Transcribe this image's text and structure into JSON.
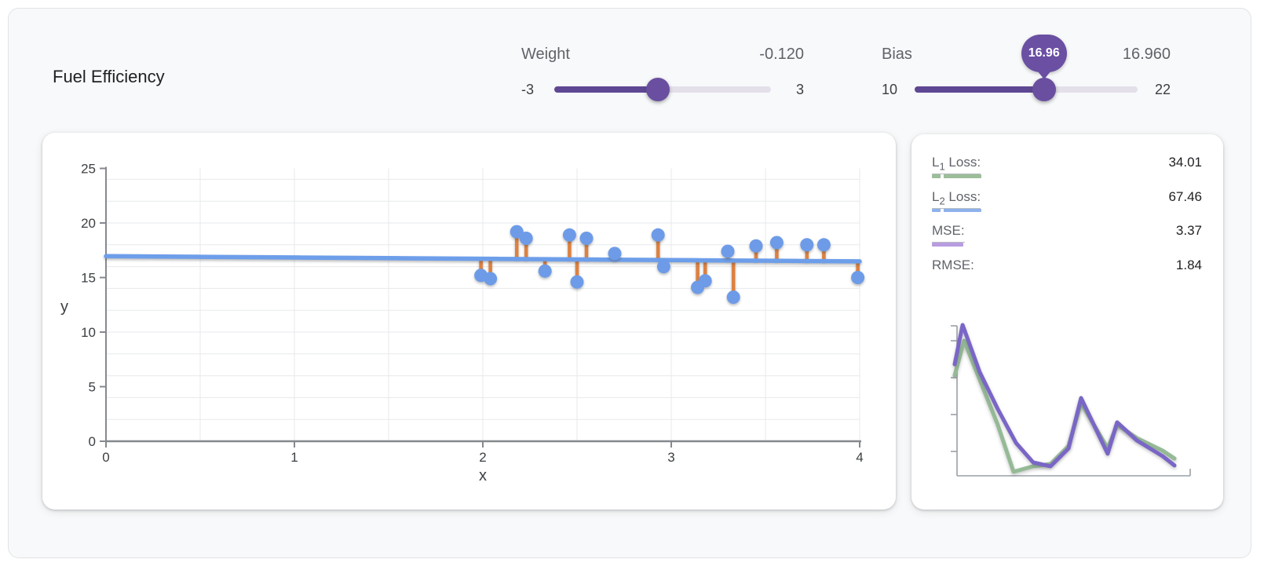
{
  "title": "Fuel Efficiency",
  "sliders": {
    "weight": {
      "label": "Weight",
      "display_value": "-0.120",
      "min_label": "-3",
      "max_label": "3",
      "min": -3,
      "max": 3,
      "value": -0.12
    },
    "bias": {
      "label": "Bias",
      "display_value": "16.960",
      "min_label": "10",
      "max_label": "22",
      "min": 10,
      "max": 22,
      "value": 16.96,
      "tooltip": "16.96"
    }
  },
  "metrics": {
    "rows": [
      {
        "label_pre": "L",
        "label_sub": "1",
        "label_post": " Loss:",
        "value": "34.01",
        "swatch": "green-dashed"
      },
      {
        "label_pre": "L",
        "label_sub": "2",
        "label_post": " Loss:",
        "value": "67.46",
        "swatch": "blue-dashed"
      },
      {
        "label_pre": "MSE:",
        "label_sub": "",
        "label_post": "",
        "value": "3.37",
        "swatch": "purple-solid"
      },
      {
        "label_pre": "RMSE:",
        "label_sub": "",
        "label_post": "",
        "value": "1.84",
        "swatch": "none"
      }
    ]
  },
  "colors": {
    "panel_bg": "#F8F9FA",
    "card_bg": "#FFFFFF",
    "text_dark": "#202124",
    "text_gray": "#5F6368",
    "axis_gray": "#85898E",
    "grid_gray": "#E7E9EC",
    "slider_purple": "#5F4893",
    "slider_thumb_purple": "#6A4FA0",
    "slider_track_empty": "#E4E0EA",
    "bubble_purple": "#6A4FA3",
    "point_blue": "#6D9BE8",
    "line_blue": "#6D9EEA",
    "residual_orange": "#DD8140",
    "loss_green": "#95BA96",
    "loss_purple": "#7A66C6",
    "underline_green": "#9CBE9A",
    "underline_blue": "#8EB1EB",
    "underline_purple": "#B79CE0"
  },
  "chart_data": [
    {
      "id": "fuel-efficiency-scatter",
      "type": "scatter",
      "xlabel": "x",
      "ylabel": "y",
      "xlim": [
        0,
        4
      ],
      "ylim": [
        0,
        25
      ],
      "x_ticks": [
        0,
        1,
        2,
        3,
        4
      ],
      "y_ticks": [
        0,
        5,
        10,
        15,
        20,
        25
      ],
      "x_grid_step": 0.5,
      "y_grid_step": 2,
      "grid": true,
      "points": [
        [
          1.99,
          15.2
        ],
        [
          2.04,
          14.9
        ],
        [
          2.18,
          19.2
        ],
        [
          2.23,
          18.6
        ],
        [
          2.33,
          15.6
        ],
        [
          2.46,
          18.9
        ],
        [
          2.5,
          14.6
        ],
        [
          2.55,
          18.6
        ],
        [
          2.7,
          17.2
        ],
        [
          2.93,
          18.9
        ],
        [
          2.96,
          16.0
        ],
        [
          3.14,
          14.1
        ],
        [
          3.18,
          14.7
        ],
        [
          3.3,
          17.4
        ],
        [
          3.33,
          13.2
        ],
        [
          3.45,
          17.9
        ],
        [
          3.56,
          18.2
        ],
        [
          3.72,
          18.0
        ],
        [
          3.81,
          18.0
        ],
        [
          3.99,
          15.0
        ]
      ],
      "model_line": {
        "weight": -0.12,
        "bias": 16.96
      },
      "show_residuals": true
    },
    {
      "id": "loss-curves",
      "type": "line",
      "x_axis_labels": "none",
      "y_axis_labels": "none",
      "series": [
        {
          "name": "L1 loss",
          "color_key": "loss_green",
          "points_norm": [
            [
              0,
              0.656
            ],
            [
              0.043,
              0.882
            ],
            [
              0.196,
              0.333
            ],
            [
              0.268,
              0.026
            ],
            [
              0.357,
              0.062
            ],
            [
              0.436,
              0.077
            ],
            [
              0.518,
              0.195
            ],
            [
              0.575,
              0.477
            ],
            [
              0.696,
              0.179
            ],
            [
              0.739,
              0.333
            ],
            [
              0.829,
              0.246
            ],
            [
              0.946,
              0.164
            ],
            [
              1,
              0.113
            ]
          ]
        },
        {
          "name": "MSE",
          "color_key": "loss_purple",
          "points_norm": [
            [
              0,
              0.728
            ],
            [
              0.036,
              0.985
            ],
            [
              0.114,
              0.677
            ],
            [
              0.196,
              0.436
            ],
            [
              0.279,
              0.215
            ],
            [
              0.357,
              0.087
            ],
            [
              0.436,
              0.062
            ],
            [
              0.518,
              0.179
            ],
            [
              0.575,
              0.508
            ],
            [
              0.696,
              0.144
            ],
            [
              0.739,
              0.349
            ],
            [
              0.829,
              0.231
            ],
            [
              0.946,
              0.128
            ],
            [
              1,
              0.067
            ]
          ]
        }
      ]
    }
  ]
}
